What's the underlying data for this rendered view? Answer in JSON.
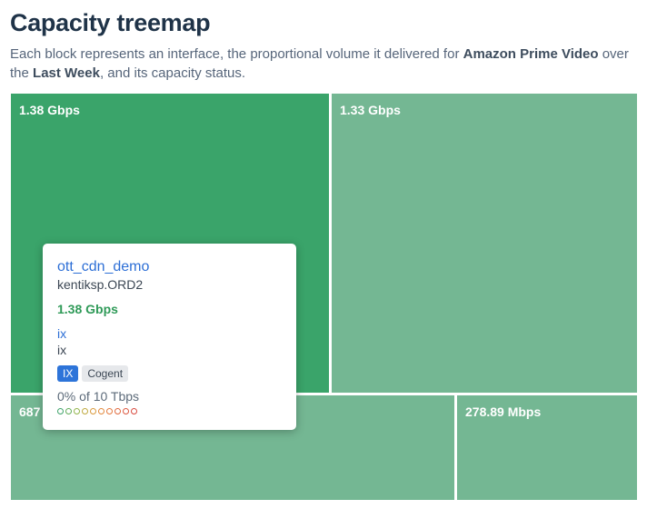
{
  "header": {
    "title": "Capacity treemap",
    "desc_prefix": "Each block represents an interface, the proportional volume it delivered for ",
    "desc_service": "Amazon Prime Video",
    "desc_middle": " over the ",
    "desc_period": "Last Week",
    "desc_suffix": ", and its capacity status."
  },
  "tiles": [
    {
      "label": "1.38 Gbps",
      "active": true
    },
    {
      "label": "1.33 Gbps",
      "active": false
    },
    {
      "label": "687",
      "active": false
    },
    {
      "label": "278.89 Mbps",
      "active": false
    }
  ],
  "tooltip": {
    "interface_name": "ott_cdn_demo",
    "device": "kentiksp.ORD2",
    "rate": "1.38 Gbps",
    "connectivity_link": "ix",
    "connectivity_type": "ix",
    "tags": [
      "IX",
      "Cogent"
    ],
    "utilization": "0% of 10 Tbps",
    "utilization_fraction": 0
  },
  "colors": {
    "tile_active": "#3aa46a",
    "tile": "#74b793",
    "link": "#2d6fd6",
    "rate": "#2f9a58",
    "dot_scale": [
      "#3fa36b",
      "#63ad5b",
      "#93b54b",
      "#bfa93f",
      "#d99a3c",
      "#e28a3d",
      "#e47a3f",
      "#e06a40",
      "#dc5840",
      "#d84a3f"
    ]
  }
}
